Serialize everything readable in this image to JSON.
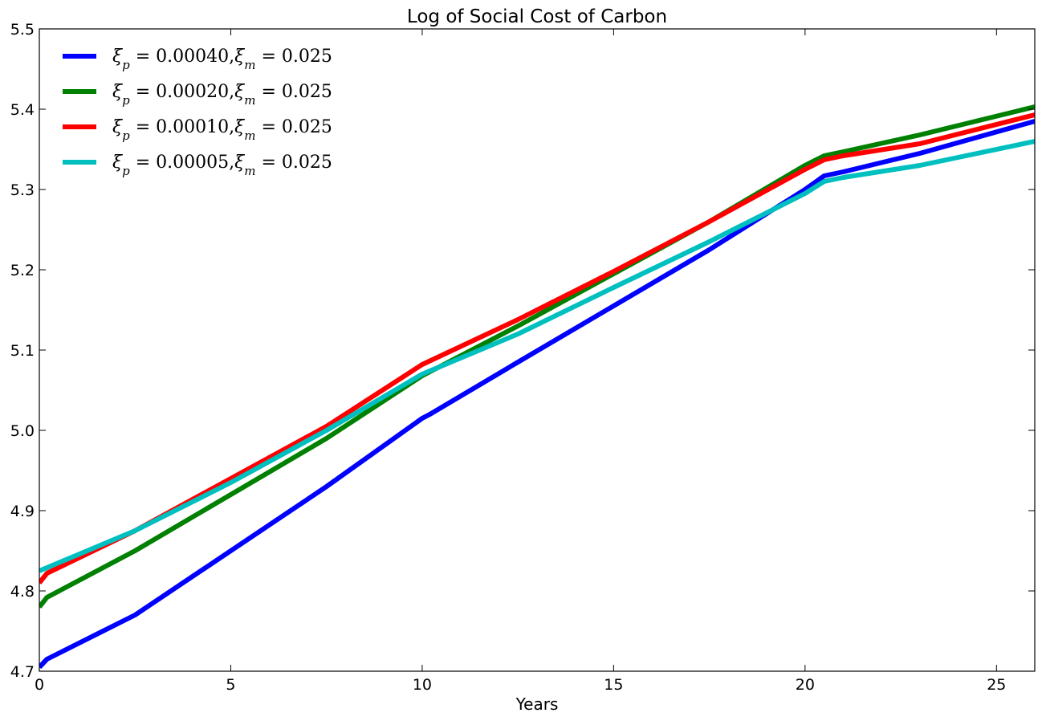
{
  "chart_data": {
    "type": "line",
    "title": "Log of Social Cost of Carbon",
    "xlabel": "Years",
    "ylabel": "",
    "xlim": [
      0,
      26
    ],
    "ylim": [
      4.7,
      5.5
    ],
    "x_ticks": [
      0,
      5,
      10,
      15,
      20,
      25
    ],
    "x_tick_labels": [
      "0",
      "5",
      "10",
      "15",
      "20",
      "25"
    ],
    "y_ticks": [
      4.7,
      4.8,
      4.9,
      5.0,
      5.1,
      5.2,
      5.3,
      5.4,
      5.5
    ],
    "y_tick_labels": [
      "4.7",
      "4.8",
      "4.9",
      "5.0",
      "5.1",
      "5.2",
      "5.3",
      "5.4",
      "5.5"
    ],
    "grid": false,
    "legend_position": "top-left",
    "series": [
      {
        "name": "ξp = 0.00040, ξm = 0.025",
        "color": "#0000ff",
        "x": [
          0,
          0.2,
          2.5,
          5,
          7.5,
          10,
          10.2,
          12.5,
          15,
          17.5,
          20,
          20.5,
          21,
          23,
          26
        ],
        "y": [
          4.705,
          4.715,
          4.77,
          4.85,
          4.93,
          5.015,
          5.02,
          5.085,
          5.155,
          5.225,
          5.3,
          5.317,
          5.322,
          5.345,
          5.385
        ]
      },
      {
        "name": "ξp = 0.00020, ξm = 0.025",
        "color": "#008000",
        "x": [
          0,
          0.2,
          2.5,
          5,
          7.5,
          10,
          12.5,
          15,
          17.5,
          20,
          20.5,
          21,
          23,
          26
        ],
        "y": [
          4.78,
          4.792,
          4.85,
          4.92,
          4.99,
          5.068,
          5.13,
          5.195,
          5.26,
          5.33,
          5.342,
          5.347,
          5.368,
          5.403
        ]
      },
      {
        "name": "ξp = 0.00010, ξm = 0.025",
        "color": "#ff0000",
        "x": [
          0,
          0.2,
          2.5,
          5,
          7.5,
          10,
          12.5,
          15,
          17.5,
          20,
          20.5,
          21,
          23,
          26
        ],
        "y": [
          4.81,
          4.822,
          4.875,
          4.94,
          5.005,
          5.082,
          5.138,
          5.198,
          5.26,
          5.325,
          5.337,
          5.342,
          5.357,
          5.393
        ]
      },
      {
        "name": "ξp = 0.00005, ξm = 0.025",
        "color": "#00bfbf",
        "x": [
          0,
          2.5,
          5,
          7.5,
          10,
          12.5,
          15,
          17.5,
          20,
          20.5,
          21,
          23,
          26
        ],
        "y": [
          4.825,
          4.875,
          4.935,
          5.0,
          5.07,
          5.12,
          5.178,
          5.235,
          5.295,
          5.31,
          5.315,
          5.33,
          5.36
        ]
      }
    ],
    "legend_labels": [
      {
        "xi_p": "0.00040",
        "xi_m": "0.025"
      },
      {
        "xi_p": "0.00020",
        "xi_m": "0.025"
      },
      {
        "xi_p": "0.00010",
        "xi_m": "0.025"
      },
      {
        "xi_p": "0.00005",
        "xi_m": "0.025"
      }
    ]
  }
}
